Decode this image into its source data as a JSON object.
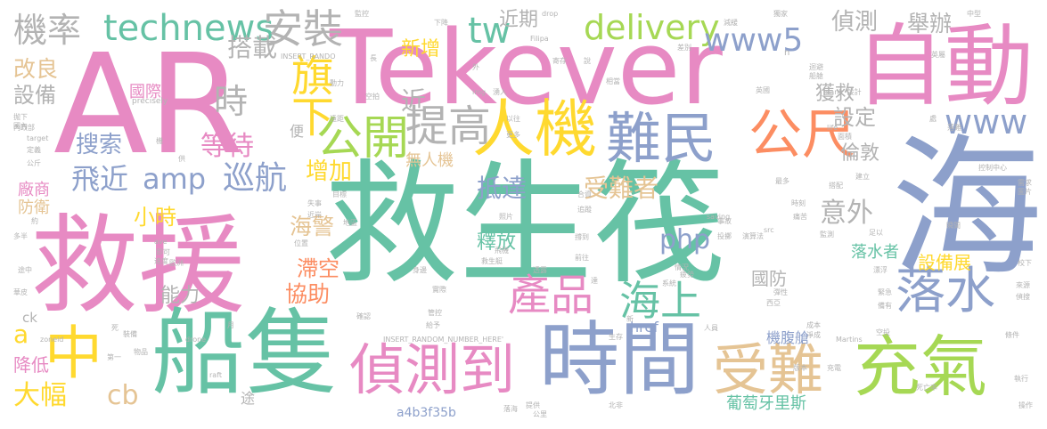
{
  "words": [
    {
      "text": "救生筏",
      "color": "#66C2A5"
    },
    {
      "text": "救援",
      "color": "#E78AC3"
    },
    {
      "text": "AR",
      "color": "#E78AC3"
    },
    {
      "text": "Tekever",
      "color": "#E78AC3"
    },
    {
      "text": "海",
      "color": "#8DA0CB"
    },
    {
      "text": "自動",
      "color": "#E78AC3"
    },
    {
      "text": "船隻",
      "color": "#66C2A5"
    },
    {
      "text": "時間",
      "color": "#8DA0CB"
    },
    {
      "text": "充氣",
      "color": "#A6D854"
    },
    {
      "text": "偵測到",
      "color": "#E78AC3"
    },
    {
      "text": "受難",
      "color": "#E5C494"
    },
    {
      "text": "中",
      "color": "#FFD92F"
    },
    {
      "text": "人機",
      "color": "#FFD92F"
    },
    {
      "text": "難民",
      "color": "#8DA0CB"
    },
    {
      "text": "公尺",
      "color": "#FC8D62"
    },
    {
      "text": "落水",
      "color": "#8DA0CB"
    },
    {
      "text": "產品",
      "color": "#E78AC3"
    },
    {
      "text": "海上",
      "color": "#66C2A5"
    },
    {
      "text": "公開",
      "color": "#A6D854"
    },
    {
      "text": "提高",
      "color": "#B3B3B3"
    },
    {
      "text": "technews",
      "color": "#66C2A5"
    },
    {
      "text": "安裝",
      "color": "#B3B3B3"
    },
    {
      "text": "機率",
      "color": "#B3B3B3"
    },
    {
      "text": "tw",
      "color": "#66C2A5"
    },
    {
      "text": "delivery",
      "color": "#A6D854"
    },
    {
      "text": "www5",
      "color": "#8DA0CB"
    },
    {
      "text": "www",
      "color": "#8DA0CB"
    },
    {
      "text": "旗下",
      "color": "#FFD92F"
    },
    {
      "text": "搭載",
      "color": "#B3B3B3"
    },
    {
      "text": "改良",
      "color": "#E5C494"
    },
    {
      "text": "設備",
      "color": "#B3B3B3"
    },
    {
      "text": "國際",
      "color": "#E78AC3"
    },
    {
      "text": "時",
      "color": "#B3B3B3"
    },
    {
      "text": "近",
      "color": "#B3B3B3"
    },
    {
      "text": "近期",
      "color": "#B3B3B3"
    },
    {
      "text": "新增",
      "color": "#FFD92F"
    },
    {
      "text": "偵測",
      "color": "#B3B3B3"
    },
    {
      "text": "舉辦",
      "color": "#B3B3B3"
    },
    {
      "text": "設定",
      "color": "#B3B3B3"
    },
    {
      "text": "獲救",
      "color": "#B3B3B3"
    },
    {
      "text": "搜索",
      "color": "#8DA0CB"
    },
    {
      "text": "等待",
      "color": "#E78AC3"
    },
    {
      "text": "巡航",
      "color": "#8DA0CB"
    },
    {
      "text": "飛近",
      "color": "#8DA0CB"
    },
    {
      "text": "amp",
      "color": "#8DA0CB"
    },
    {
      "text": "增加",
      "color": "#FFD92F"
    },
    {
      "text": "抵達",
      "color": "#8DA0CB"
    },
    {
      "text": "受難者",
      "color": "#E5C494"
    },
    {
      "text": "無人機",
      "color": "#E5C494"
    },
    {
      "text": "倫敦",
      "color": "#B3B3B3"
    },
    {
      "text": "意外",
      "color": "#B3B3B3"
    },
    {
      "text": "廠商",
      "color": "#E78AC3"
    },
    {
      "text": "防衛",
      "color": "#E5C494"
    },
    {
      "text": "小時",
      "color": "#FFD92F"
    },
    {
      "text": "海警",
      "color": "#E5C494"
    },
    {
      "text": "php",
      "color": "#8DA0CB"
    },
    {
      "text": "釋放",
      "color": "#66C2A5"
    },
    {
      "text": "滯空",
      "color": "#FC8D62"
    },
    {
      "text": "協助",
      "color": "#FC8D62"
    },
    {
      "text": "能力",
      "color": "#B3B3B3"
    },
    {
      "text": "國防",
      "color": "#B3B3B3"
    },
    {
      "text": "設備展",
      "color": "#FFD92F"
    },
    {
      "text": "落水者",
      "color": "#66C2A5"
    },
    {
      "text": "a",
      "color": "#FFD92F"
    },
    {
      "text": "降低",
      "color": "#E78AC3"
    },
    {
      "text": "大幅",
      "color": "#FFD92F"
    },
    {
      "text": "cb",
      "color": "#E5C494"
    },
    {
      "text": "href",
      "color": "#8DA0CB"
    },
    {
      "text": "機腹艙",
      "color": "#8DA0CB"
    },
    {
      "text": "葡萄牙里斯",
      "color": "#66C2A5"
    },
    {
      "text": "a4b3f35b",
      "color": "#8DA0CB"
    },
    {
      "text": "便",
      "color": "#B3B3B3"
    },
    {
      "text": "ck",
      "color": "#B3B3B3"
    },
    {
      "text": "途",
      "color": "#B3B3B3"
    },
    {
      "text": "_blank' 設計",
      "color": "#B3B3B3"
    },
    {
      "text": "INSERT_RANDO",
      "color": "#B3B3B3"
    },
    {
      "text": "INSERT_RANDOM_NUMBER_HERE'",
      "color": "#B3B3B3"
    },
    {
      "text": "precisely",
      "color": "#B3B3B3"
    },
    {
      "text": "target",
      "color": "#B3B3B3"
    },
    {
      "text": "zoneid",
      "color": "#B3B3B3"
    },
    {
      "text": "drone",
      "color": "#B3B3B3"
    },
    {
      "text": "raft",
      "color": "#B3B3B3"
    },
    {
      "text": "Martins",
      "color": "#B3B3B3"
    },
    {
      "text": "Filipa",
      "color": "#B3B3B3"
    },
    {
      "text": "drop",
      "color": "#B3B3B3"
    },
    {
      "text": "img",
      "color": "#B3B3B3"
    },
    {
      "text": "src",
      "color": "#B3B3B3"
    },
    {
      "text": "saving",
      "color": "#B3B3B3"
    },
    {
      "text": "ave",
      "color": "#B3B3B3"
    },
    {
      "text": "n",
      "color": "#B3B3B3"
    },
    {
      "text": "life",
      "color": "#B3B3B3"
    },
    {
      "text": "動力",
      "color": "#B3B3B3"
    },
    {
      "text": "空拍",
      "color": "#B3B3B3"
    },
    {
      "text": "以往",
      "color": "#B3B3B3"
    },
    {
      "text": "更多",
      "color": "#B3B3B3"
    },
    {
      "text": "湧入",
      "color": "#B3B3B3"
    },
    {
      "text": "遠距",
      "color": "#B3B3B3"
    },
    {
      "text": "飛機",
      "color": "#B3B3B3"
    },
    {
      "text": "監控",
      "color": "#B3B3B3"
    },
    {
      "text": "下降",
      "color": "#B3B3B3"
    },
    {
      "text": "獨家",
      "color": "#B3B3B3"
    },
    {
      "text": "中型",
      "color": "#B3B3B3"
    },
    {
      "text": "英屬",
      "color": "#B3B3B3"
    },
    {
      "text": "英國",
      "color": "#B3B3B3"
    },
    {
      "text": "船艙",
      "color": "#B3B3B3"
    },
    {
      "text": "迴避",
      "color": "#B3B3B3"
    },
    {
      "text": "落難",
      "color": "#B3B3B3"
    },
    {
      "text": "控制中心",
      "color": "#B3B3B3"
    },
    {
      "text": "需求",
      "color": "#B3B3B3"
    },
    {
      "text": "圖片",
      "color": "#B3B3B3"
    },
    {
      "text": "校下",
      "color": "#B3B3B3"
    },
    {
      "text": "來源",
      "color": "#B3B3B3"
    },
    {
      "text": "偵搜",
      "color": "#B3B3B3"
    },
    {
      "text": "條件",
      "color": "#B3B3B3"
    },
    {
      "text": "執行",
      "color": "#B3B3B3"
    },
    {
      "text": "操作",
      "color": "#B3B3B3"
    },
    {
      "text": "死亡率",
      "color": "#B3B3B3"
    },
    {
      "text": "充電",
      "color": "#B3B3B3"
    },
    {
      "text": "北非",
      "color": "#B3B3B3"
    },
    {
      "text": "公里",
      "color": "#B3B3B3"
    },
    {
      "text": "落海",
      "color": "#B3B3B3"
    },
    {
      "text": "多半",
      "color": "#B3B3B3"
    },
    {
      "text": "途中",
      "color": "#B3B3B3"
    },
    {
      "text": "華皮",
      "color": "#B3B3B3"
    },
    {
      "text": "死",
      "color": "#B3B3B3"
    },
    {
      "text": "裝備",
      "color": "#B3B3B3"
    },
    {
      "text": "第一",
      "color": "#B3B3B3"
    },
    {
      "text": "物品",
      "color": "#B3B3B3"
    },
    {
      "text": "即可",
      "color": "#B3B3B3"
    },
    {
      "text": "歐洲",
      "color": "#B3B3B3"
    },
    {
      "text": "速度",
      "color": "#B3B3B3"
    },
    {
      "text": "地區",
      "color": "#B3B3B3"
    },
    {
      "text": "失事",
      "color": "#B3B3B3"
    },
    {
      "text": "近岸",
      "color": "#B3B3B3"
    },
    {
      "text": "目標",
      "color": "#B3B3B3"
    },
    {
      "text": "救生艇",
      "color": "#B3B3B3"
    },
    {
      "text": "身邊",
      "color": "#B3B3B3"
    },
    {
      "text": "實際",
      "color": "#B3B3B3"
    },
    {
      "text": "確認",
      "color": "#B3B3B3"
    },
    {
      "text": "給予",
      "color": "#B3B3B3"
    },
    {
      "text": "管控",
      "color": "#B3B3B3"
    },
    {
      "text": "生存",
      "color": "#B3B3B3"
    },
    {
      "text": "情況",
      "color": "#B3B3B3"
    },
    {
      "text": "系統",
      "color": "#B3B3B3"
    },
    {
      "text": "演算法",
      "color": "#B3B3B3"
    },
    {
      "text": "投擲",
      "color": "#B3B3B3"
    },
    {
      "text": "前往",
      "color": "#B3B3B3"
    },
    {
      "text": "撐到",
      "color": "#B3B3B3"
    },
    {
      "text": "人員",
      "color": "#B3B3B3"
    },
    {
      "text": "西亞",
      "color": "#B3B3B3"
    },
    {
      "text": "成本",
      "color": "#B3B3B3"
    },
    {
      "text": "淨成",
      "color": "#B3B3B3"
    },
    {
      "text": "漂浮",
      "color": "#B3B3B3"
    },
    {
      "text": "彈性",
      "color": "#B3B3B3"
    },
    {
      "text": "緊急",
      "color": "#B3B3B3"
    },
    {
      "text": "備有",
      "color": "#B3B3B3"
    },
    {
      "text": "空投",
      "color": "#B3B3B3"
    },
    {
      "text": "國內",
      "color": "#B3B3B3"
    },
    {
      "text": "定義",
      "color": "#B3B3B3"
    },
    {
      "text": "公斤",
      "color": "#B3B3B3"
    },
    {
      "text": "抛下",
      "color": "#B3B3B3"
    },
    {
      "text": "內政部",
      "color": "#B3B3B3"
    },
    {
      "text": "面積",
      "color": "#B3B3B3"
    },
    {
      "text": "建立",
      "color": "#B3B3B3"
    },
    {
      "text": "監測",
      "color": "#B3B3B3"
    },
    {
      "text": "搭配",
      "color": "#B3B3B3"
    },
    {
      "text": "足以",
      "color": "#B3B3B3"
    },
    {
      "text": "處",
      "color": "#B3B3B3"
    },
    {
      "text": "機",
      "color": "#B3B3B3"
    },
    {
      "text": "長",
      "color": "#B3B3B3"
    },
    {
      "text": "外",
      "color": "#B3B3B3"
    },
    {
      "text": "說",
      "color": "#B3B3B3"
    },
    {
      "text": "新",
      "color": "#B3B3B3"
    },
    {
      "text": "月",
      "color": "#B3B3B3"
    },
    {
      "text": "約",
      "color": "#B3B3B3"
    },
    {
      "text": "供",
      "color": "#B3B3B3"
    },
    {
      "text": "達",
      "color": "#B3B3B3"
    },
    {
      "text": "相當",
      "color": "#B3B3B3"
    },
    {
      "text": "差別",
      "color": "#B3B3B3"
    },
    {
      "text": "最多",
      "color": "#B3B3B3"
    },
    {
      "text": "提供",
      "color": "#B3B3B3"
    },
    {
      "text": "合資",
      "color": "#B3B3B3"
    },
    {
      "text": "版本",
      "color": "#B3B3B3"
    },
    {
      "text": "透露",
      "color": "#B3B3B3"
    },
    {
      "text": "痛苦",
      "color": "#B3B3B3"
    },
    {
      "text": "位置",
      "color": "#B3B3B3"
    },
    {
      "text": "寄存",
      "color": "#B3B3B3"
    },
    {
      "text": "減緩",
      "color": "#B3B3B3"
    },
    {
      "text": "疲勞",
      "color": "#B3B3B3"
    },
    {
      "text": "照片",
      "color": "#B3B3B3"
    },
    {
      "text": "時刻",
      "color": "#B3B3B3"
    },
    {
      "text": "追蹤",
      "color": "#B3B3B3"
    },
    {
      "text": "事故",
      "color": "#B3B3B3"
    },
    {
      "text": "瞬間",
      "color": "#B3B3B3"
    },
    {
      "text": "部署",
      "color": "#B3B3B3"
    },
    {
      "text": "需求量",
      "color": "#B3B3B3"
    }
  ]
}
